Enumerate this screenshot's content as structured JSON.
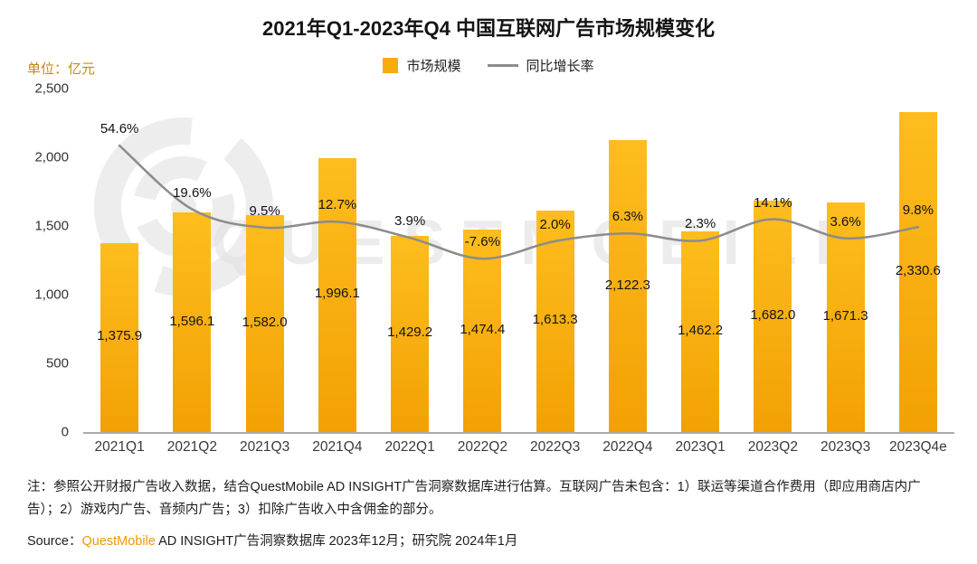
{
  "title": "2021年Q1-2023年Q4 中国互联网广告市场规模变化",
  "unit_label": "单位：亿元",
  "legend": {
    "bar_label": "市场规模",
    "line_label": "同比增长率"
  },
  "watermark_text": "QUESTMOBILE",
  "chart_data": {
    "type": "bar",
    "title": "2021年Q1-2023年Q4 中国互联网广告市场规模变化",
    "xlabel": "",
    "ylabel": "亿元",
    "categories": [
      "2021Q1",
      "2021Q2",
      "2021Q3",
      "2021Q4",
      "2022Q1",
      "2022Q2",
      "2022Q3",
      "2022Q4",
      "2023Q1",
      "2023Q2",
      "2023Q3",
      "2023Q4e"
    ],
    "series": [
      {
        "name": "市场规模",
        "type": "bar",
        "values": [
          1375.9,
          1596.1,
          1582.0,
          1996.1,
          1429.2,
          1474.4,
          1613.3,
          2122.3,
          1462.2,
          1682.0,
          1671.3,
          2330.6
        ],
        "labels": [
          "1,375.9",
          "1,596.1",
          "1,582.0",
          "1,996.1",
          "1,429.2",
          "1,474.4",
          "1,613.3",
          "2,122.3",
          "1,462.2",
          "1,682.0",
          "1,671.3",
          "2,330.6"
        ]
      },
      {
        "name": "同比增长率",
        "type": "line",
        "values": [
          54.6,
          19.6,
          9.5,
          12.7,
          3.9,
          -7.6,
          2.0,
          6.3,
          2.3,
          14.1,
          3.6,
          9.8
        ],
        "labels": [
          "54.6%",
          "19.6%",
          "9.5%",
          "12.7%",
          "3.9%",
          "-7.6%",
          "2.0%",
          "6.3%",
          "2.3%",
          "14.1%",
          "3.6%",
          "9.8%"
        ]
      }
    ],
    "y_ticks": [
      "2,500",
      "2,000",
      "1,500",
      "1,000",
      "500",
      "0"
    ],
    "ylim": [
      0,
      2500
    ],
    "line_ylim_hint": [
      -103,
      86
    ],
    "grid": false,
    "legend_position": "top-center",
    "colors": {
      "bar": "#F8AB0C",
      "line": "#8C8C8C"
    }
  },
  "note_text": "注：参照公开财报广告收入数据，结合QuestMobile AD INSIGHT广告洞察数据库进行估算。互联网广告未包含：1）联运等渠道合作费用（即应用商店内广告）；2）游戏内广告、音频内广告；3）扣除广告收入中含佣金的部分。",
  "source": {
    "prefix": "Source：",
    "brand": "QuestMobile",
    "rest": " AD INSIGHT广告洞察数据库 2023年12月；研究院 2024年1月"
  }
}
